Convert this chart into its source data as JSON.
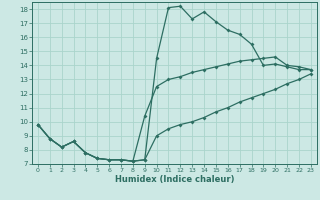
{
  "xlabel": "Humidex (Indice chaleur)",
  "bg_color": "#cce8e4",
  "grid_color": "#aad4cc",
  "line_color": "#2d6e62",
  "xlim": [
    -0.5,
    23.5
  ],
  "ylim": [
    7,
    18.5
  ],
  "xticks": [
    0,
    1,
    2,
    3,
    4,
    5,
    6,
    7,
    8,
    9,
    10,
    11,
    12,
    13,
    14,
    15,
    16,
    17,
    18,
    19,
    20,
    21,
    22,
    23
  ],
  "yticks": [
    7,
    8,
    9,
    10,
    11,
    12,
    13,
    14,
    15,
    16,
    17,
    18
  ],
  "line1_x": [
    0,
    1,
    2,
    3,
    4,
    5,
    6,
    7,
    8,
    9,
    10,
    11,
    12,
    13,
    14,
    15,
    16,
    17,
    18,
    19,
    20,
    21,
    22,
    23
  ],
  "line1_y": [
    9.8,
    8.8,
    8.2,
    8.6,
    7.8,
    7.4,
    7.3,
    7.3,
    7.2,
    7.3,
    14.5,
    18.1,
    18.2,
    17.3,
    17.8,
    17.1,
    16.5,
    16.2,
    15.5,
    14.0,
    14.1,
    13.9,
    13.7,
    13.7
  ],
  "line2_x": [
    0,
    1,
    2,
    3,
    4,
    5,
    6,
    7,
    8,
    9,
    10,
    11,
    12,
    13,
    14,
    15,
    16,
    17,
    18,
    19,
    20,
    21,
    22,
    23
  ],
  "line2_y": [
    9.8,
    8.8,
    8.2,
    8.6,
    7.8,
    7.4,
    7.3,
    7.3,
    7.2,
    10.4,
    12.5,
    13.0,
    13.2,
    13.5,
    13.7,
    13.9,
    14.1,
    14.3,
    14.4,
    14.5,
    14.6,
    14.0,
    13.9,
    13.7
  ],
  "line3_x": [
    0,
    1,
    2,
    3,
    4,
    5,
    6,
    7,
    8,
    9,
    10,
    11,
    12,
    13,
    14,
    15,
    16,
    17,
    18,
    19,
    20,
    21,
    22,
    23
  ],
  "line3_y": [
    9.8,
    8.8,
    8.2,
    8.6,
    7.8,
    7.4,
    7.3,
    7.3,
    7.2,
    7.3,
    9.0,
    9.5,
    9.8,
    10.0,
    10.3,
    10.7,
    11.0,
    11.4,
    11.7,
    12.0,
    12.3,
    12.7,
    13.0,
    13.4
  ]
}
